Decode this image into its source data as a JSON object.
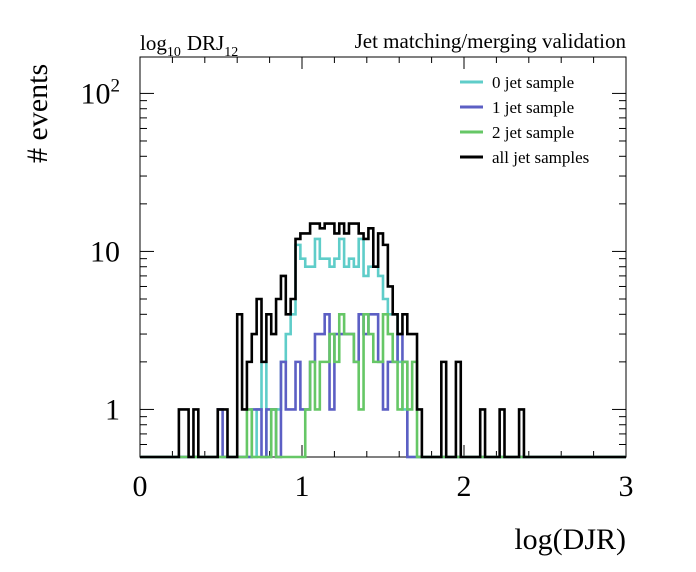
{
  "chart_data": {
    "type": "line",
    "title_left": "log",
    "title_left_sub": "10",
    "title_left_main": "DRJ",
    "title_left_main_sub": "12",
    "title_right": "Jet matching/merging validation",
    "xlabel": "log(DJR)",
    "ylabel": "# events",
    "xlim": [
      0,
      3
    ],
    "ylim": [
      0.5,
      170
    ],
    "yscale": "log",
    "bin_width": 0.03,
    "x_ticks": [
      {
        "value": 0,
        "label": "0"
      },
      {
        "value": 1,
        "label": "1"
      },
      {
        "value": 2,
        "label": "2"
      },
      {
        "value": 3,
        "label": "3"
      }
    ],
    "y_ticks": [
      {
        "value": 1,
        "label": "1"
      },
      {
        "value": 10,
        "label": "10"
      },
      {
        "value": 100,
        "label": "10",
        "sup": "2"
      }
    ],
    "legend_position": "top-right",
    "series": [
      {
        "name": "0 jet sample",
        "color": "#5fcdc9",
        "bins": [
          {
            "x": 0.72,
            "y": 1
          },
          {
            "x": 0.75,
            "y": 2
          },
          {
            "x": 0.78,
            "y": 0
          },
          {
            "x": 0.81,
            "y": 1
          },
          {
            "x": 0.84,
            "y": 1
          },
          {
            "x": 0.87,
            "y": 2
          },
          {
            "x": 0.9,
            "y": 3
          },
          {
            "x": 0.93,
            "y": 4
          },
          {
            "x": 0.96,
            "y": 11
          },
          {
            "x": 0.99,
            "y": 9
          },
          {
            "x": 1.02,
            "y": 8
          },
          {
            "x": 1.05,
            "y": 8
          },
          {
            "x": 1.08,
            "y": 12
          },
          {
            "x": 1.11,
            "y": 9
          },
          {
            "x": 1.14,
            "y": 9
          },
          {
            "x": 1.17,
            "y": 8
          },
          {
            "x": 1.2,
            "y": 9
          },
          {
            "x": 1.23,
            "y": 12
          },
          {
            "x": 1.26,
            "y": 8
          },
          {
            "x": 1.29,
            "y": 9
          },
          {
            "x": 1.32,
            "y": 8
          },
          {
            "x": 1.35,
            "y": 12
          },
          {
            "x": 1.38,
            "y": 7
          },
          {
            "x": 1.41,
            "y": 8
          },
          {
            "x": 1.44,
            "y": 8
          },
          {
            "x": 1.47,
            "y": 7
          },
          {
            "x": 1.5,
            "y": 5
          },
          {
            "x": 1.53,
            "y": 4
          },
          {
            "x": 1.56,
            "y": 4
          },
          {
            "x": 1.59,
            "y": 2
          },
          {
            "x": 1.62,
            "y": 1
          }
        ]
      },
      {
        "name": "1 jet sample",
        "color": "#5c5fc4",
        "bins": [
          {
            "x": 0.48,
            "y": 1
          },
          {
            "x": 0.51,
            "y": 0
          },
          {
            "x": 0.54,
            "y": 0
          },
          {
            "x": 0.57,
            "y": 0
          },
          {
            "x": 0.6,
            "y": 0
          },
          {
            "x": 0.63,
            "y": 0
          },
          {
            "x": 0.66,
            "y": 0
          },
          {
            "x": 0.69,
            "y": 1
          },
          {
            "x": 0.72,
            "y": 1
          },
          {
            "x": 0.75,
            "y": 0
          },
          {
            "x": 0.78,
            "y": 1
          },
          {
            "x": 0.81,
            "y": 1
          },
          {
            "x": 0.84,
            "y": 0
          },
          {
            "x": 0.87,
            "y": 2
          },
          {
            "x": 0.9,
            "y": 1
          },
          {
            "x": 0.93,
            "y": 1
          },
          {
            "x": 0.96,
            "y": 2
          },
          {
            "x": 0.99,
            "y": 1
          },
          {
            "x": 1.02,
            "y": 1
          },
          {
            "x": 1.05,
            "y": 2
          },
          {
            "x": 1.08,
            "y": 3
          },
          {
            "x": 1.11,
            "y": 3
          },
          {
            "x": 1.14,
            "y": 4
          },
          {
            "x": 1.17,
            "y": 1
          },
          {
            "x": 1.2,
            "y": 3
          },
          {
            "x": 1.23,
            "y": 3
          },
          {
            "x": 1.26,
            "y": 3
          },
          {
            "x": 1.29,
            "y": 3
          },
          {
            "x": 1.32,
            "y": 2
          },
          {
            "x": 1.35,
            "y": 4
          },
          {
            "x": 1.38,
            "y": 3
          },
          {
            "x": 1.41,
            "y": 4
          },
          {
            "x": 1.44,
            "y": 4
          },
          {
            "x": 1.47,
            "y": 2
          },
          {
            "x": 1.5,
            "y": 1
          },
          {
            "x": 1.53,
            "y": 2
          },
          {
            "x": 1.56,
            "y": 2
          },
          {
            "x": 1.59,
            "y": 3
          },
          {
            "x": 1.62,
            "y": 2
          },
          {
            "x": 1.65,
            "y": 0
          },
          {
            "x": 1.68,
            "y": 0
          }
        ]
      },
      {
        "name": "2 jet sample",
        "color": "#66c766",
        "bins": [
          {
            "x": 0.66,
            "y": 1
          },
          {
            "x": 0.69,
            "y": 0
          },
          {
            "x": 0.72,
            "y": 0
          },
          {
            "x": 0.75,
            "y": 0
          },
          {
            "x": 0.78,
            "y": 0
          },
          {
            "x": 0.81,
            "y": 1
          },
          {
            "x": 0.84,
            "y": 0
          },
          {
            "x": 0.87,
            "y": 0
          },
          {
            "x": 0.9,
            "y": 0
          },
          {
            "x": 0.93,
            "y": 0
          },
          {
            "x": 0.96,
            "y": 0
          },
          {
            "x": 0.99,
            "y": 0
          },
          {
            "x": 1.02,
            "y": 1
          },
          {
            "x": 1.05,
            "y": 2
          },
          {
            "x": 1.08,
            "y": 1
          },
          {
            "x": 1.11,
            "y": 2
          },
          {
            "x": 1.14,
            "y": 2
          },
          {
            "x": 1.17,
            "y": 3
          },
          {
            "x": 1.2,
            "y": 2
          },
          {
            "x": 1.23,
            "y": 4
          },
          {
            "x": 1.26,
            "y": 3
          },
          {
            "x": 1.29,
            "y": 3
          },
          {
            "x": 1.32,
            "y": 2
          },
          {
            "x": 1.35,
            "y": 1
          },
          {
            "x": 1.38,
            "y": 4
          },
          {
            "x": 1.41,
            "y": 3
          },
          {
            "x": 1.44,
            "y": 2
          },
          {
            "x": 1.47,
            "y": 2
          },
          {
            "x": 1.5,
            "y": 4
          },
          {
            "x": 1.53,
            "y": 3
          },
          {
            "x": 1.56,
            "y": 2
          },
          {
            "x": 1.59,
            "y": 1
          },
          {
            "x": 1.62,
            "y": 2
          },
          {
            "x": 1.65,
            "y": 1
          },
          {
            "x": 1.68,
            "y": 2
          },
          {
            "x": 1.71,
            "y": 0
          }
        ]
      },
      {
        "name": "all jet samples",
        "color": "#000000",
        "bins": [
          {
            "x": 0.24,
            "y": 1
          },
          {
            "x": 0.27,
            "y": 1
          },
          {
            "x": 0.3,
            "y": 0
          },
          {
            "x": 0.33,
            "y": 1
          },
          {
            "x": 0.36,
            "y": 0
          },
          {
            "x": 0.39,
            "y": 0
          },
          {
            "x": 0.42,
            "y": 0
          },
          {
            "x": 0.45,
            "y": 0
          },
          {
            "x": 0.48,
            "y": 1
          },
          {
            "x": 0.51,
            "y": 1
          },
          {
            "x": 0.54,
            "y": 0
          },
          {
            "x": 0.57,
            "y": 0
          },
          {
            "x": 0.6,
            "y": 4
          },
          {
            "x": 0.63,
            "y": 1
          },
          {
            "x": 0.66,
            "y": 2
          },
          {
            "x": 0.69,
            "y": 3
          },
          {
            "x": 0.72,
            "y": 5
          },
          {
            "x": 0.75,
            "y": 2
          },
          {
            "x": 0.78,
            "y": 4
          },
          {
            "x": 0.81,
            "y": 3
          },
          {
            "x": 0.84,
            "y": 5
          },
          {
            "x": 0.87,
            "y": 7
          },
          {
            "x": 0.9,
            "y": 4
          },
          {
            "x": 0.93,
            "y": 5
          },
          {
            "x": 0.96,
            "y": 12
          },
          {
            "x": 0.99,
            "y": 13
          },
          {
            "x": 1.02,
            "y": 13
          },
          {
            "x": 1.05,
            "y": 15
          },
          {
            "x": 1.08,
            "y": 15
          },
          {
            "x": 1.11,
            "y": 14
          },
          {
            "x": 1.14,
            "y": 15
          },
          {
            "x": 1.17,
            "y": 15
          },
          {
            "x": 1.2,
            "y": 13
          },
          {
            "x": 1.23,
            "y": 15
          },
          {
            "x": 1.26,
            "y": 13
          },
          {
            "x": 1.29,
            "y": 15
          },
          {
            "x": 1.32,
            "y": 15
          },
          {
            "x": 1.35,
            "y": 13
          },
          {
            "x": 1.38,
            "y": 12
          },
          {
            "x": 1.41,
            "y": 14
          },
          {
            "x": 1.44,
            "y": 8
          },
          {
            "x": 1.47,
            "y": 13
          },
          {
            "x": 1.5,
            "y": 11
          },
          {
            "x": 1.53,
            "y": 6
          },
          {
            "x": 1.56,
            "y": 4
          },
          {
            "x": 1.59,
            "y": 3
          },
          {
            "x": 1.62,
            "y": 4
          },
          {
            "x": 1.65,
            "y": 3
          },
          {
            "x": 1.68,
            "y": 3
          },
          {
            "x": 1.71,
            "y": 1
          },
          {
            "x": 1.74,
            "y": 0
          },
          {
            "x": 1.77,
            "y": 0
          },
          {
            "x": 1.8,
            "y": 0
          },
          {
            "x": 1.83,
            "y": 0
          },
          {
            "x": 1.86,
            "y": 2
          },
          {
            "x": 1.89,
            "y": 0
          },
          {
            "x": 1.92,
            "y": 0
          },
          {
            "x": 1.95,
            "y": 2
          },
          {
            "x": 1.98,
            "y": 0
          },
          {
            "x": 2.01,
            "y": 0
          },
          {
            "x": 2.04,
            "y": 0
          },
          {
            "x": 2.07,
            "y": 0
          },
          {
            "x": 2.1,
            "y": 1
          },
          {
            "x": 2.13,
            "y": 0
          },
          {
            "x": 2.16,
            "y": 0
          },
          {
            "x": 2.19,
            "y": 0
          },
          {
            "x": 2.22,
            "y": 1
          },
          {
            "x": 2.25,
            "y": 0
          },
          {
            "x": 2.28,
            "y": 0
          },
          {
            "x": 2.31,
            "y": 0
          },
          {
            "x": 2.34,
            "y": 1
          }
        ]
      }
    ]
  }
}
